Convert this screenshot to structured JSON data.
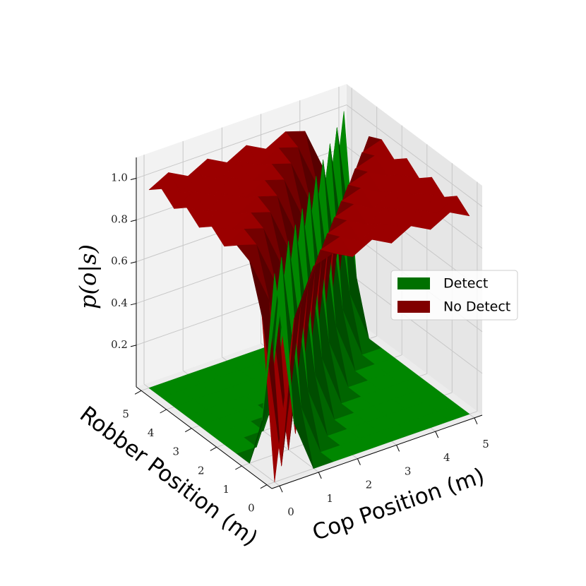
{
  "chart_data": {
    "type": "surface3d",
    "x_label": "Cop Position (m)",
    "y_label": "Robber Position (m)",
    "z_label": "p(o|s)",
    "x": [
      0,
      0.5,
      1,
      1.5,
      2,
      2.5,
      3,
      3.5,
      4,
      4.5,
      5
    ],
    "y": [
      0,
      0.5,
      1,
      1.5,
      2,
      2.5,
      3,
      3.5,
      4,
      4.5,
      5
    ],
    "xlim": [
      -0.2,
      5.2
    ],
    "ylim": [
      -0.2,
      5.2
    ],
    "zlim": [
      0,
      1.1
    ],
    "xticks": [
      0,
      1,
      2,
      3,
      4,
      5
    ],
    "yticks": [
      0,
      1,
      2,
      3,
      4,
      5
    ],
    "zticks": [
      0.2,
      0.4,
      0.6,
      0.8,
      {
        "value": 1,
        "label": "1.0"
      }
    ],
    "grid": true,
    "legend": "right",
    "series": [
      {
        "name": "Detect",
        "color": "#007000",
        "z": [
          [
            1,
            0.25,
            0,
            0,
            0,
            0,
            0,
            0,
            0,
            0,
            0
          ],
          [
            0.25,
            1,
            0.25,
            0,
            0,
            0,
            0,
            0,
            0,
            0,
            0
          ],
          [
            0,
            0.25,
            1,
            0.25,
            0,
            0,
            0,
            0,
            0,
            0,
            0
          ],
          [
            0,
            0,
            0.25,
            1,
            0.25,
            0,
            0,
            0,
            0,
            0,
            0
          ],
          [
            0,
            0,
            0,
            0.25,
            1,
            0.25,
            0,
            0,
            0,
            0,
            0
          ],
          [
            0,
            0,
            0,
            0,
            0.25,
            1,
            0.25,
            0,
            0,
            0,
            0
          ],
          [
            0,
            0,
            0,
            0,
            0,
            0.25,
            1,
            0.25,
            0,
            0,
            0
          ],
          [
            0,
            0,
            0,
            0,
            0,
            0,
            0.25,
            1,
            0.25,
            0,
            0
          ],
          [
            0,
            0,
            0,
            0,
            0,
            0,
            0,
            0.25,
            1,
            0.25,
            0
          ],
          [
            0,
            0,
            0,
            0,
            0,
            0,
            0,
            0,
            0.25,
            1,
            0.25
          ],
          [
            0,
            0,
            0,
            0,
            0,
            0,
            0,
            0,
            0,
            0.25,
            1
          ]
        ]
      },
      {
        "name": "No Detect",
        "color": "#800000",
        "z": [
          [
            0,
            0.75,
            0.97,
            1,
            0.95,
            1,
            0.95,
            1,
            0.95,
            1,
            0.95
          ],
          [
            0.75,
            0,
            0.75,
            0.97,
            1,
            0.95,
            1,
            0.95,
            1,
            0.95,
            1
          ],
          [
            0.97,
            0.75,
            0,
            0.75,
            0.97,
            1,
            0.95,
            1,
            0.95,
            1,
            0.95
          ],
          [
            1,
            0.97,
            0.75,
            0,
            0.75,
            0.97,
            1,
            0.95,
            1,
            0.95,
            1
          ],
          [
            0.95,
            1,
            0.97,
            0.75,
            0,
            0.75,
            0.97,
            1,
            0.95,
            1,
            0.95
          ],
          [
            1,
            0.95,
            1,
            0.97,
            0.75,
            0,
            0.75,
            0.97,
            1,
            0.95,
            1
          ],
          [
            0.95,
            1,
            0.95,
            1,
            0.97,
            0.75,
            0,
            0.75,
            0.97,
            1,
            0.95
          ],
          [
            1,
            0.95,
            1,
            0.95,
            1,
            0.97,
            0.75,
            0,
            0.75,
            0.97,
            1
          ],
          [
            0.95,
            1,
            0.95,
            1,
            0.95,
            1,
            0.97,
            0.75,
            0,
            0.75,
            0.97
          ],
          [
            1,
            0.95,
            1,
            0.95,
            1,
            0.95,
            1,
            0.97,
            0.75,
            0,
            0.75
          ],
          [
            0.95,
            1,
            0.95,
            1,
            0.95,
            1,
            0.95,
            1,
            0.97,
            0.75,
            0
          ]
        ]
      }
    ]
  }
}
